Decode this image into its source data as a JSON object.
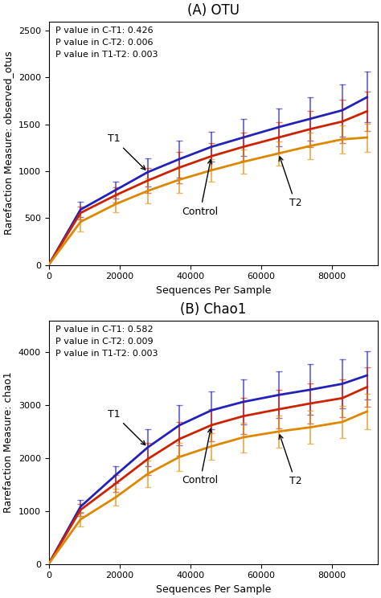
{
  "chart_data": [
    {
      "type": "line",
      "title": "(A) OTU",
      "x_label": "Sequences Per Sample",
      "y_label": "Rarefaction Measure: observed_otus",
      "x": [
        0,
        9000,
        19000,
        28000,
        37000,
        46000,
        55000,
        65000,
        74000,
        83000,
        90000
      ],
      "xlim": [
        0,
        93000
      ],
      "xticks": [
        0,
        20000,
        40000,
        60000,
        80000
      ],
      "ylim": [
        0,
        2600
      ],
      "yticks": [
        0,
        500,
        1000,
        1500,
        2000,
        2500
      ],
      "series": [
        {
          "color": "#2222bb",
          "values": [
            0,
            590,
            800,
            990,
            1130,
            1260,
            1360,
            1470,
            1560,
            1650,
            1790
          ],
          "errors": [
            0,
            80,
            90,
            150,
            200,
            160,
            200,
            200,
            230,
            280,
            270
          ]
        },
        {
          "color": "#cc2200",
          "values": [
            0,
            555,
            745,
            900,
            1040,
            1160,
            1260,
            1360,
            1450,
            1530,
            1640
          ],
          "errors": [
            0,
            70,
            80,
            130,
            170,
            140,
            150,
            160,
            190,
            230,
            210
          ]
        },
        {
          "color": "#dd8800",
          "values": [
            0,
            460,
            650,
            790,
            910,
            1010,
            1100,
            1190,
            1270,
            1340,
            1360
          ],
          "errors": [
            0,
            100,
            90,
            130,
            140,
            120,
            130,
            130,
            140,
            150,
            150
          ]
        }
      ],
      "annotations": [
        {
          "text": "T1",
          "x": 28000,
          "y": 990
        },
        {
          "text": "Control",
          "x": 46000,
          "y": 1160
        },
        {
          "text": "T2",
          "x": 65000,
          "y": 1190
        }
      ],
      "notes": [
        "P value in C-T1: 0.426",
        "P value in C-T2: 0.006",
        "P value in T1-T2: 0.003"
      ]
    },
    {
      "type": "line",
      "title": "(B) Chao1",
      "x_label": "Sequences Per Sample",
      "y_label": "Rarefaction Measure: chao1",
      "x": [
        0,
        9000,
        19000,
        28000,
        37000,
        46000,
        55000,
        65000,
        74000,
        83000,
        90000
      ],
      "xlim": [
        0,
        93000
      ],
      "xticks": [
        0,
        20000,
        40000,
        60000,
        80000
      ],
      "ylim": [
        0,
        4600
      ],
      "yticks": [
        0,
        1000,
        2000,
        3000,
        4000
      ],
      "series": [
        {
          "color": "#2222bb",
          "values": [
            0,
            1080,
            1680,
            2200,
            2620,
            2900,
            3060,
            3190,
            3290,
            3400,
            3560
          ],
          "errors": [
            0,
            120,
            160,
            350,
            380,
            360,
            420,
            440,
            480,
            460,
            450
          ]
        },
        {
          "color": "#cc2200",
          "values": [
            0,
            1020,
            1520,
            1980,
            2360,
            2620,
            2790,
            2920,
            3030,
            3130,
            3340
          ],
          "errors": [
            0,
            110,
            160,
            300,
            320,
            300,
            340,
            360,
            380,
            360,
            370
          ]
        },
        {
          "color": "#dd8800",
          "values": [
            0,
            840,
            1260,
            1700,
            2020,
            2220,
            2390,
            2500,
            2580,
            2680,
            2880
          ],
          "errors": [
            0,
            140,
            160,
            250,
            270,
            250,
            280,
            300,
            310,
            300,
            330
          ]
        }
      ],
      "annotations": [
        {
          "text": "T1",
          "x": 28000,
          "y": 2200
        },
        {
          "text": "Control",
          "x": 46000,
          "y": 2620
        },
        {
          "text": "T2",
          "x": 65000,
          "y": 2500
        }
      ],
      "notes": [
        "P value in C-T1: 0.582",
        "P value in C-T2: 0.009",
        "P value in T1-T2: 0.003"
      ]
    }
  ]
}
